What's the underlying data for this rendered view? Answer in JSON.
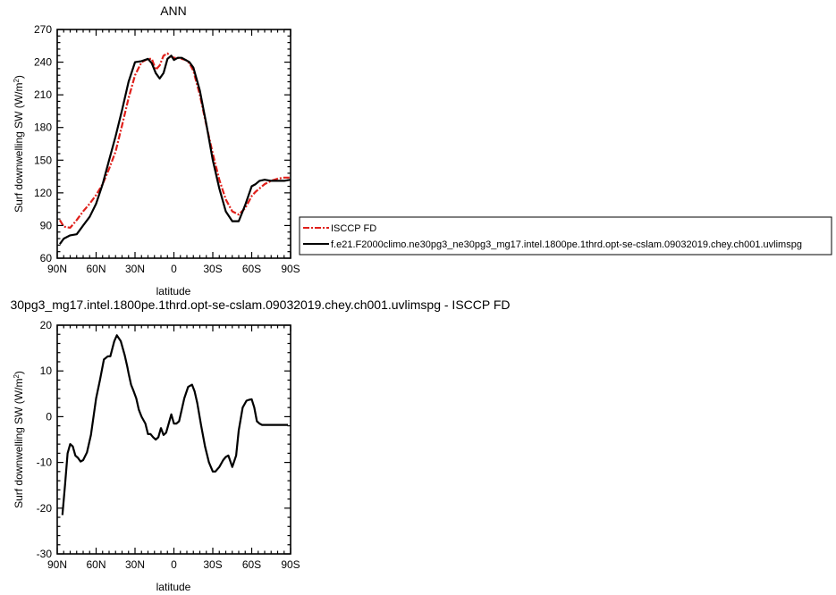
{
  "chart_data": [
    {
      "type": "line",
      "title": "ANN",
      "xlabel": "latitude",
      "ylabel": "Surf downwelling SW (W/m",
      "ylabel_superscript": "2",
      "ylabel_suffix": ")",
      "xlim": [
        90,
        -90
      ],
      "ylim": [
        60,
        270
      ],
      "x_tick_values": [
        90,
        60,
        30,
        0,
        -30,
        -60,
        -90
      ],
      "x_tick_labels": [
        "90N",
        "60N",
        "30N",
        "0",
        "30S",
        "60S",
        "90S"
      ],
      "y_ticks": [
        60,
        90,
        120,
        150,
        180,
        210,
        240,
        270
      ],
      "grid": false,
      "legend_placement": "right",
      "series": [
        {
          "name": "ISCCP FD",
          "color": "#e0201b",
          "style": "dashed",
          "x": [
            88,
            85,
            80,
            75,
            70,
            65,
            60,
            55,
            50,
            45,
            40,
            35,
            30,
            25,
            20,
            17,
            14,
            11,
            8,
            5,
            2,
            0,
            -3,
            -6,
            -9,
            -12,
            -15,
            -20,
            -25,
            -30,
            -35,
            -40,
            -45,
            -50,
            -55,
            -60,
            -63,
            -66,
            -70,
            -75,
            -80,
            -85,
            -90
          ],
          "values": [
            95,
            89,
            88,
            95,
            103,
            110,
            118,
            128,
            142,
            158,
            182,
            207,
            228,
            240,
            243,
            243,
            233,
            237,
            246,
            248,
            245,
            244,
            244,
            243,
            242,
            239,
            232,
            210,
            182,
            156,
            132,
            114,
            103,
            100,
            106,
            117,
            121,
            124,
            128,
            131,
            133,
            134,
            134
          ]
        },
        {
          "name": "f.e21.F2000climo.ne30pg3_ne30pg3_mg17.intel.1800pe.1thrd.opt-se-cslam.09032019.chey.ch001.uvlimspg",
          "color": "#000000",
          "style": "solid",
          "x": [
            88,
            85,
            80,
            75,
            70,
            65,
            60,
            55,
            50,
            45,
            40,
            35,
            30,
            25,
            20,
            17,
            14,
            11,
            8,
            5,
            2,
            0,
            -3,
            -6,
            -9,
            -12,
            -15,
            -20,
            -25,
            -30,
            -35,
            -40,
            -45,
            -50,
            -55,
            -60,
            -63,
            -66,
            -70,
            -75,
            -80,
            -85,
            -90
          ],
          "values": [
            73,
            78,
            81,
            82,
            90,
            98,
            110,
            128,
            150,
            172,
            196,
            222,
            240,
            241,
            243,
            239,
            230,
            225,
            230,
            243,
            246,
            242,
            244,
            244,
            242,
            240,
            235,
            214,
            183,
            150,
            124,
            103,
            94,
            94,
            109,
            126,
            128,
            131,
            132,
            131,
            131,
            131,
            132
          ]
        }
      ]
    },
    {
      "type": "line",
      "title": "30pg3_mg17.intel.1800pe.1thrd.opt-se-cslam.09032019.chey.ch001.uvlimspg - ISCCP FD",
      "xlabel": "latitude",
      "ylabel": "Surf downwelling SW (W/m",
      "ylabel_superscript": "2",
      "ylabel_suffix": ")",
      "xlim": [
        90,
        -90
      ],
      "ylim": [
        -30,
        20
      ],
      "x_tick_values": [
        90,
        60,
        30,
        0,
        -30,
        -60,
        -90
      ],
      "x_tick_labels": [
        "90N",
        "60N",
        "30N",
        "0",
        "30S",
        "60S",
        "90S"
      ],
      "y_ticks": [
        -30,
        -20,
        -10,
        0,
        10,
        20
      ],
      "grid": false,
      "series": [
        {
          "color": "#000000",
          "style": "solid",
          "x": [
            86,
            84,
            82,
            80,
            78,
            76,
            74,
            72,
            70,
            67,
            64,
            62,
            60,
            57,
            54,
            51,
            49,
            46,
            44,
            41,
            38,
            36,
            35,
            33,
            31,
            29,
            27,
            25,
            22,
            20,
            18,
            16,
            14,
            12,
            10,
            8,
            6,
            4,
            2,
            0,
            -2,
            -4,
            -6,
            -8,
            -11,
            -14,
            -16,
            -18,
            -21,
            -24,
            -27,
            -30,
            -32,
            -35,
            -38,
            -40,
            -42,
            -45,
            -48,
            -50,
            -53,
            -56,
            -58,
            -60,
            -62,
            -64,
            -66,
            -68,
            -70,
            -72,
            -75,
            -78,
            -81,
            -84,
            -86,
            -88
          ],
          "values": [
            -21.5,
            -15,
            -8,
            -6,
            -6.5,
            -8.5,
            -9,
            -9.8,
            -9.5,
            -7.8,
            -4,
            0,
            4,
            8,
            12.5,
            13.2,
            13.2,
            16.5,
            17.8,
            16.5,
            13.5,
            11,
            9.5,
            7,
            5.5,
            4,
            1.5,
            0,
            -1.5,
            -3.8,
            -3.8,
            -4.5,
            -5,
            -4.5,
            -2.5,
            -4,
            -3.5,
            -1.5,
            0.5,
            -1.5,
            -1.5,
            -1,
            1.5,
            4,
            6.5,
            7,
            5.5,
            3,
            -2,
            -6.5,
            -10,
            -12,
            -12,
            -11,
            -9.5,
            -8.8,
            -8.5,
            -11,
            -8.5,
            -3,
            2,
            3.5,
            3.7,
            3.8,
            2,
            -1,
            -1.5,
            -1.8,
            -1.8,
            -1.8,
            -1.8,
            -1.8,
            -1.8,
            -1.8,
            -1.8,
            -1.8
          ]
        }
      ]
    }
  ]
}
